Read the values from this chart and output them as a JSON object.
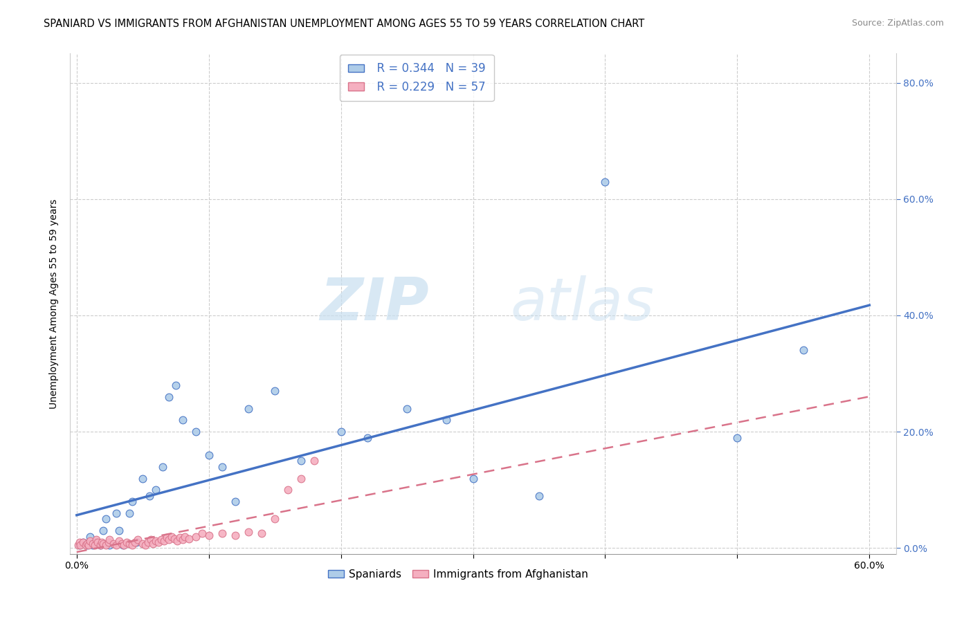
{
  "title": "SPANIARD VS IMMIGRANTS FROM AFGHANISTAN UNEMPLOYMENT AMONG AGES 55 TO 59 YEARS CORRELATION CHART",
  "source": "Source: ZipAtlas.com",
  "ylabel_label": "Unemployment Among Ages 55 to 59 years",
  "xlim": [
    -0.005,
    0.62
  ],
  "ylim": [
    -0.01,
    0.85
  ],
  "x_tick_vals": [
    0.0,
    0.1,
    0.2,
    0.3,
    0.4,
    0.5,
    0.6
  ],
  "y_tick_vals": [
    0.0,
    0.2,
    0.4,
    0.6,
    0.8
  ],
  "legend_r1": "R = 0.344",
  "legend_n1": "N = 39",
  "legend_r2": "R = 0.229",
  "legend_n2": "N = 57",
  "spaniards_color": "#aecce8",
  "immigrants_color": "#f5afc0",
  "trend_spaniards_color": "#4472c4",
  "trend_immigrants_color": "#d9738a",
  "watermark_zip": "ZIP",
  "watermark_atlas": "atlas",
  "background_color": "#ffffff",
  "grid_color": "#cccccc",
  "title_fontsize": 10.5,
  "axis_tick_fontsize": 10,
  "marker_size": 60,
  "spaniards_x": [
    0.002,
    0.005,
    0.008,
    0.01,
    0.012,
    0.015,
    0.018,
    0.02,
    0.022,
    0.025,
    0.03,
    0.032,
    0.035,
    0.04,
    0.042,
    0.045,
    0.05,
    0.055,
    0.06,
    0.065,
    0.07,
    0.075,
    0.08,
    0.09,
    0.1,
    0.11,
    0.12,
    0.13,
    0.15,
    0.17,
    0.2,
    0.22,
    0.25,
    0.28,
    0.3,
    0.35,
    0.4,
    0.5,
    0.55
  ],
  "spaniards_y": [
    0.005,
    0.01,
    0.005,
    0.02,
    0.005,
    0.01,
    0.005,
    0.03,
    0.05,
    0.005,
    0.06,
    0.03,
    0.005,
    0.06,
    0.08,
    0.01,
    0.12,
    0.09,
    0.1,
    0.14,
    0.26,
    0.28,
    0.22,
    0.2,
    0.16,
    0.14,
    0.08,
    0.24,
    0.27,
    0.15,
    0.2,
    0.19,
    0.24,
    0.22,
    0.12,
    0.09,
    0.63,
    0.19,
    0.34
  ],
  "immigrants_x": [
    0.001,
    0.002,
    0.003,
    0.005,
    0.007,
    0.008,
    0.009,
    0.01,
    0.012,
    0.014,
    0.015,
    0.016,
    0.018,
    0.019,
    0.02,
    0.022,
    0.024,
    0.025,
    0.028,
    0.03,
    0.032,
    0.034,
    0.036,
    0.038,
    0.04,
    0.042,
    0.044,
    0.046,
    0.05,
    0.052,
    0.054,
    0.056,
    0.058,
    0.06,
    0.062,
    0.064,
    0.066,
    0.068,
    0.07,
    0.072,
    0.074,
    0.076,
    0.078,
    0.08,
    0.082,
    0.085,
    0.09,
    0.095,
    0.1,
    0.11,
    0.12,
    0.13,
    0.14,
    0.15,
    0.16,
    0.17,
    0.18
  ],
  "immigrants_y": [
    0.005,
    0.01,
    0.005,
    0.01,
    0.005,
    0.008,
    0.005,
    0.012,
    0.008,
    0.005,
    0.015,
    0.01,
    0.005,
    0.01,
    0.008,
    0.005,
    0.01,
    0.015,
    0.008,
    0.005,
    0.012,
    0.008,
    0.005,
    0.01,
    0.008,
    0.005,
    0.01,
    0.015,
    0.008,
    0.005,
    0.01,
    0.015,
    0.008,
    0.012,
    0.01,
    0.015,
    0.012,
    0.018,
    0.015,
    0.02,
    0.016,
    0.012,
    0.018,
    0.015,
    0.02,
    0.016,
    0.02,
    0.025,
    0.022,
    0.025,
    0.022,
    0.028,
    0.025,
    0.05,
    0.1,
    0.12,
    0.15
  ]
}
